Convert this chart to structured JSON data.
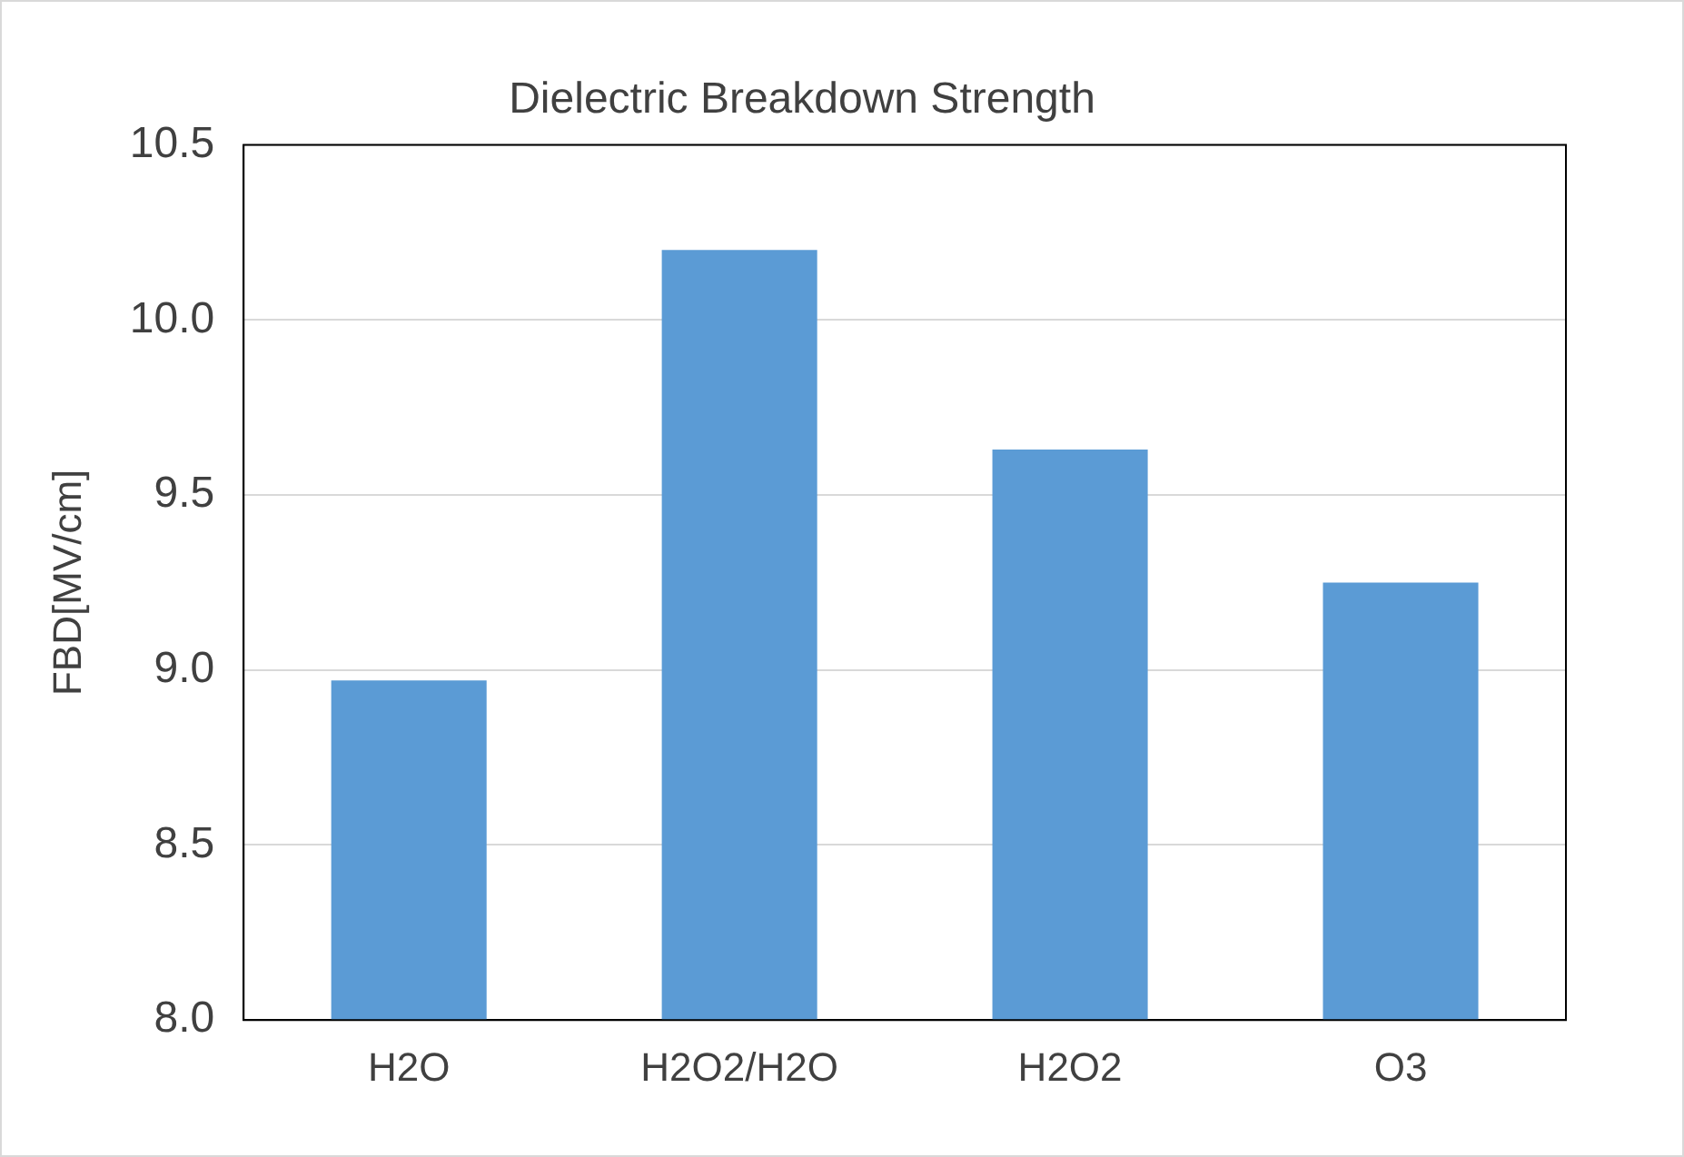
{
  "chart_data": {
    "type": "bar",
    "title": "Dielectric Breakdown Strength",
    "ylabel": "FBD[MV/cm]",
    "categories": [
      "H2O",
      "H2O2/H2O",
      "H2O2",
      "O3"
    ],
    "values": [
      8.97,
      10.2,
      9.63,
      9.25
    ],
    "color": "#5b9bd5",
    "ylim": [
      8.0,
      10.5
    ],
    "yticks": [
      {
        "value": 8,
        "label": "8.0"
      },
      {
        "value": 8.5,
        "label": "8.5"
      },
      {
        "value": 9,
        "label": "9.0"
      },
      {
        "value": 9.5,
        "label": "9.5"
      },
      {
        "value": 10,
        "label": "10.0"
      },
      {
        "value": 10.5,
        "label": "10.5"
      }
    ],
    "grid": "y"
  }
}
